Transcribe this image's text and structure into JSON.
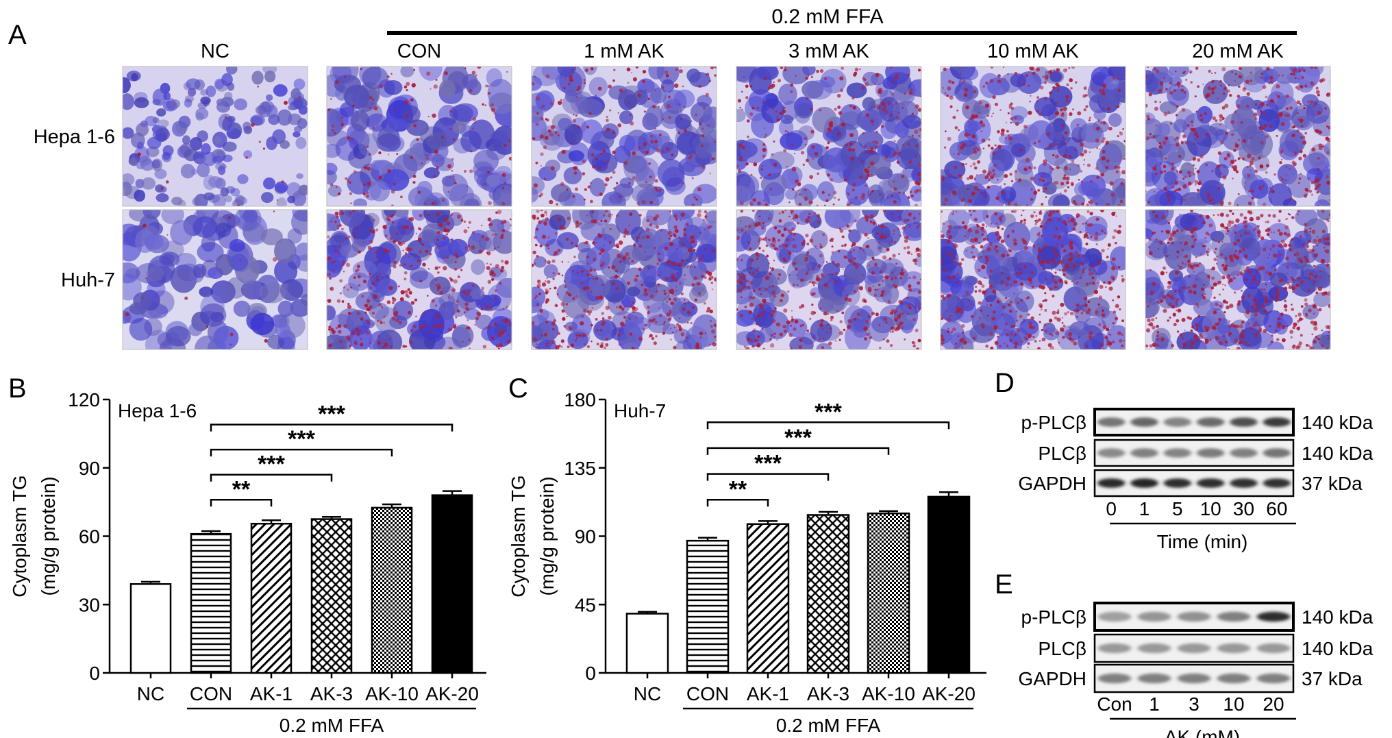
{
  "panel_a": {
    "letter": "A",
    "ffa_label": "0.2 mM FFA",
    "columns": [
      "NC",
      "CON",
      "1 mM AK",
      "3 mM AK",
      "10 mM AK",
      "20 mM AK"
    ],
    "rows": [
      "Hepa 1-6",
      "Huh-7"
    ],
    "colors": {
      "nuclei": "#4b46b8",
      "background_light": "#e6e3f4",
      "lipid": "#a8203e"
    }
  },
  "chart_data": [
    {
      "panel": "B",
      "type": "bar",
      "title": "Hepa 1-6",
      "ylabel_line1": "Cytoplasm TG",
      "ylabel_line2": "(mg/g protein)",
      "ylim": [
        0,
        120
      ],
      "yticks": [
        0,
        30,
        60,
        90,
        120
      ],
      "categories": [
        "NC",
        "CON",
        "AK-1",
        "AK-3",
        "AK-10",
        "AK-20"
      ],
      "values": [
        39,
        61,
        65.5,
        67.5,
        72.5,
        78
      ],
      "errors": [
        1,
        1.2,
        1.5,
        1,
        1.5,
        1.8
      ],
      "patterns": [
        "none",
        "hlines",
        "diag",
        "crosshatch",
        "checker",
        "solid"
      ],
      "group_label": "0.2 mM FFA",
      "significance": [
        {
          "from": 1,
          "to": 2,
          "label": "**",
          "y": 76
        },
        {
          "from": 1,
          "to": 3,
          "label": "***",
          "y": 87
        },
        {
          "from": 1,
          "to": 4,
          "label": "***",
          "y": 98
        },
        {
          "from": 1,
          "to": 5,
          "label": "***",
          "y": 109
        }
      ]
    },
    {
      "panel": "C",
      "type": "bar",
      "title": "Huh-7",
      "ylabel_line1": "Cytoplasm TG",
      "ylabel_line2": "(mg/g protein)",
      "ylim": [
        0,
        180
      ],
      "yticks": [
        0,
        45,
        90,
        135,
        180
      ],
      "categories": [
        "NC",
        "CON",
        "AK-1",
        "AK-3",
        "AK-10",
        "AK-20"
      ],
      "values": [
        39,
        87,
        98,
        104,
        105,
        116
      ],
      "errors": [
        1.2,
        2,
        2,
        2,
        1.5,
        3
      ],
      "patterns": [
        "none",
        "hlines",
        "diag",
        "crosshatch",
        "checker",
        "solid"
      ],
      "group_label": "0.2 mM FFA",
      "significance": [
        {
          "from": 1,
          "to": 2,
          "label": "**",
          "y": 114
        },
        {
          "from": 1,
          "to": 3,
          "label": "***",
          "y": 131
        },
        {
          "from": 1,
          "to": 4,
          "label": "***",
          "y": 148
        },
        {
          "from": 1,
          "to": 5,
          "label": "***",
          "y": 165
        }
      ]
    }
  ],
  "panel_d": {
    "letter": "D",
    "proteins": [
      "p-PLCβ",
      "PLCβ",
      "GAPDH"
    ],
    "sizes": [
      "140 kDa",
      "140 kDa",
      "37 kDa"
    ],
    "lanes": [
      "0",
      "1",
      "5",
      "10",
      "30",
      "60"
    ],
    "xlabel": "Time (min)",
    "intensity": [
      [
        0.55,
        0.62,
        0.48,
        0.6,
        0.72,
        0.82
      ],
      [
        0.45,
        0.5,
        0.48,
        0.52,
        0.5,
        0.55
      ],
      [
        0.9,
        0.92,
        0.88,
        0.88,
        0.86,
        0.86
      ]
    ]
  },
  "panel_e": {
    "letter": "E",
    "proteins": [
      "p-PLCβ",
      "PLCβ",
      "GAPDH"
    ],
    "sizes": [
      "140 kDa",
      "140 kDa",
      "37 kDa"
    ],
    "lanes": [
      "Con",
      "1",
      "3",
      "10",
      "20"
    ],
    "xlabel": "AK (mM)",
    "intensity": [
      [
        0.35,
        0.4,
        0.42,
        0.5,
        0.88
      ],
      [
        0.38,
        0.38,
        0.38,
        0.38,
        0.38
      ],
      [
        0.5,
        0.5,
        0.5,
        0.5,
        0.5
      ]
    ]
  }
}
